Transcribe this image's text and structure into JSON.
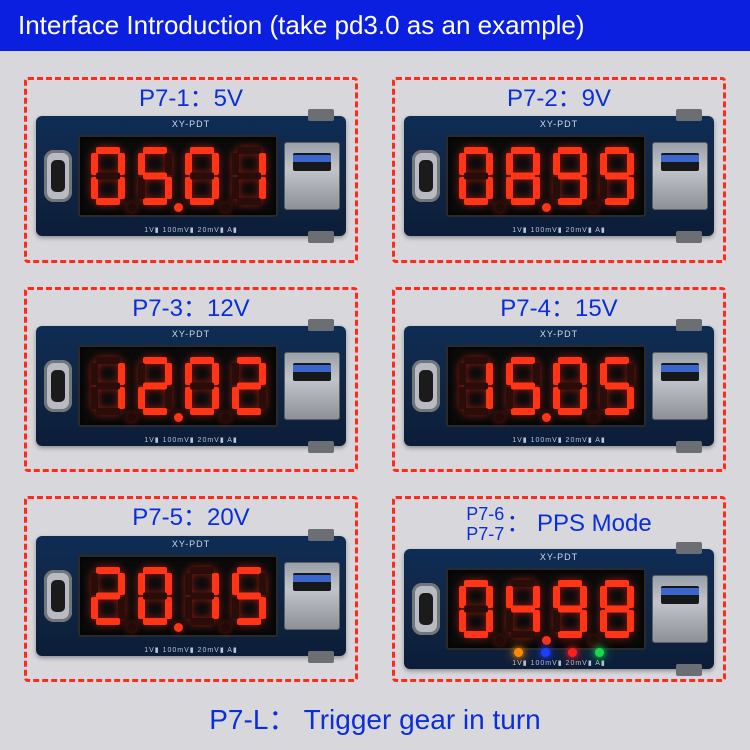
{
  "header": "Interface Introduction (take pd3.0 as an example)",
  "footer": "P7-L：  Trigger gear in turn",
  "silkscreen": "XY-PDT",
  "bottom_scale": "1V▮ 100mV▮ 20mV▮   A▮",
  "colors": {
    "header_bg": "#0a1fe0",
    "page_bg": "#d8d8dc",
    "border": "#ff2a1a",
    "label": "#0a2ed8",
    "segment_on": "#ff3516",
    "segment_off": "#2a0c08",
    "pcb_top": "#0e2d55",
    "pcb_bot": "#0b1d38",
    "display_bg": "#0b0b0b"
  },
  "led_colors": [
    "#ff8a00",
    "#1e3fff",
    "#ff1e1e",
    "#18d850"
  ],
  "cells": [
    {
      "label": "P7-1：5V",
      "readout": "05.01",
      "leds": false
    },
    {
      "label": "P7-2：9V",
      "readout": "08.99",
      "leds": false
    },
    {
      "label": "P7-3：12V",
      "readout": "12.02",
      "leds": false
    },
    {
      "label": "P7-4：15V",
      "readout": "15.05",
      "leds": false
    },
    {
      "label": "P7-5：20V",
      "readout": "20.15",
      "leds": false
    },
    {
      "label_stack": [
        "P7-6",
        "P7-7"
      ],
      "label_tail": "： PPS Mode",
      "readout": "04.98",
      "leds": true
    }
  ],
  "segment_map": {
    "0": [
      "a",
      "b",
      "c",
      "d",
      "e",
      "f"
    ],
    "1": [
      "b",
      "c"
    ],
    "2": [
      "a",
      "b",
      "g",
      "e",
      "d"
    ],
    "3": [
      "a",
      "b",
      "g",
      "c",
      "d"
    ],
    "4": [
      "f",
      "g",
      "b",
      "c"
    ],
    "5": [
      "a",
      "f",
      "g",
      "c",
      "d"
    ],
    "6": [
      "a",
      "f",
      "g",
      "e",
      "c",
      "d"
    ],
    "7": [
      "a",
      "b",
      "c"
    ],
    "8": [
      "a",
      "b",
      "c",
      "d",
      "e",
      "f",
      "g"
    ],
    "9": [
      "a",
      "b",
      "c",
      "d",
      "f",
      "g"
    ]
  }
}
